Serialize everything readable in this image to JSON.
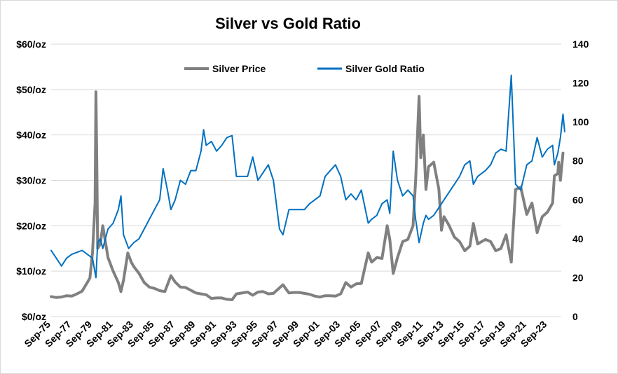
{
  "chart_data": {
    "type": "line",
    "title": "Silver vs Gold Ratio",
    "x_ticks": [
      "Sep-75",
      "Sep-77",
      "Sep-79",
      "Sep-81",
      "Sep-83",
      "Sep-85",
      "Sep-87",
      "Sep-89",
      "Sep-91",
      "Sep-93",
      "Sep-95",
      "Sep-97",
      "Sep-99",
      "Sep-01",
      "Sep-03",
      "Sep-05",
      "Sep-07",
      "Sep-09",
      "Sep-11",
      "Sep-13",
      "Sep-15",
      "Sep-17",
      "Sep-19",
      "Sep-21",
      "Sep-23"
    ],
    "x_range": [
      1975.67,
      2025.0
    ],
    "y_left": {
      "min": 0,
      "max": 60,
      "step": 10,
      "tick_labels": [
        "$0/oz",
        "$10/oz",
        "$20/oz",
        "$30/oz",
        "$40/oz",
        "$50/oz",
        "$60/oz"
      ]
    },
    "y_right": {
      "min": 0,
      "max": 140,
      "step": 20,
      "tick_labels": [
        "0",
        "20",
        "40",
        "60",
        "80",
        "100",
        "120",
        "140"
      ]
    },
    "grid": "horizontal",
    "legend": "top-center",
    "series": [
      {
        "name": "Silver Price",
        "axis": "left",
        "color": "#808080",
        "points": [
          [
            "Sep-75",
            4.4
          ],
          [
            "Mar-76",
            4.2
          ],
          [
            "Sep-76",
            4.3
          ],
          [
            "Mar-77",
            4.6
          ],
          [
            "Sep-77",
            4.5
          ],
          [
            "Mar-78",
            5.0
          ],
          [
            "Sep-78",
            5.6
          ],
          [
            "Mar-79",
            7.5
          ],
          [
            "Jun-79",
            8.5
          ],
          [
            "Sep-79",
            14.0
          ],
          [
            "Dec-79",
            25.0
          ],
          [
            "Jan-80",
            49.5
          ],
          [
            "Feb-80",
            35.0
          ],
          [
            "Mar-80",
            15.0
          ],
          [
            "Jun-80",
            16.0
          ],
          [
            "Sep-80",
            20.0
          ],
          [
            "Mar-81",
            13.0
          ],
          [
            "Sep-81",
            10.0
          ],
          [
            "Mar-82",
            7.5
          ],
          [
            "Jun-82",
            5.5
          ],
          [
            "Sep-82",
            8.0
          ],
          [
            "Feb-83",
            14.0
          ],
          [
            "Jun-83",
            12.0
          ],
          [
            "Sep-83",
            11.0
          ],
          [
            "Mar-84",
            9.5
          ],
          [
            "Sep-84",
            7.5
          ],
          [
            "Mar-85",
            6.5
          ],
          [
            "Sep-85",
            6.2
          ],
          [
            "Mar-86",
            5.7
          ],
          [
            "Sep-86",
            5.5
          ],
          [
            "Apr-87",
            9.0
          ],
          [
            "Sep-87",
            7.6
          ],
          [
            "Mar-88",
            6.5
          ],
          [
            "Sep-88",
            6.4
          ],
          [
            "Mar-89",
            5.8
          ],
          [
            "Sep-89",
            5.2
          ],
          [
            "Mar-90",
            5.0
          ],
          [
            "Sep-90",
            4.8
          ],
          [
            "Mar-91",
            4.0
          ],
          [
            "Sep-91",
            4.1
          ],
          [
            "Mar-92",
            4.1
          ],
          [
            "Sep-92",
            3.8
          ],
          [
            "Mar-93",
            3.7
          ],
          [
            "Aug-93",
            5.0
          ],
          [
            "Sep-94",
            5.4
          ],
          [
            "Mar-95",
            4.7
          ],
          [
            "Sep-95",
            5.4
          ],
          [
            "Mar-96",
            5.5
          ],
          [
            "Sep-96",
            5.0
          ],
          [
            "Mar-97",
            5.1
          ],
          [
            "Feb-98",
            7.0
          ],
          [
            "Sep-98",
            5.2
          ],
          [
            "Mar-99",
            5.3
          ],
          [
            "Sep-99",
            5.3
          ],
          [
            "Mar-00",
            5.1
          ],
          [
            "Sep-00",
            4.9
          ],
          [
            "Mar-01",
            4.5
          ],
          [
            "Sep-01",
            4.3
          ],
          [
            "Mar-02",
            4.6
          ],
          [
            "Sep-02",
            4.6
          ],
          [
            "Mar-03",
            4.5
          ],
          [
            "Sep-03",
            5.0
          ],
          [
            "Mar-04",
            7.5
          ],
          [
            "Sep-04",
            6.5
          ],
          [
            "Mar-05",
            7.2
          ],
          [
            "Sep-05",
            7.3
          ],
          [
            "May-06",
            14.0
          ],
          [
            "Sep-06",
            12.0
          ],
          [
            "Mar-07",
            13.0
          ],
          [
            "Sep-07",
            12.8
          ],
          [
            "Mar-08",
            20.0
          ],
          [
            "Jun-08",
            17.0
          ],
          [
            "Oct-08",
            9.5
          ],
          [
            "Mar-09",
            13.0
          ],
          [
            "Sep-09",
            16.5
          ],
          [
            "Mar-10",
            17.0
          ],
          [
            "Sep-10",
            20.0
          ],
          [
            "Dec-10",
            30.0
          ],
          [
            "Apr-11",
            48.5
          ],
          [
            "Jun-11",
            35.0
          ],
          [
            "Sep-11",
            40.0
          ],
          [
            "Dec-11",
            28.0
          ],
          [
            "Mar-12",
            33.0
          ],
          [
            "Sep-12",
            34.0
          ],
          [
            "Mar-13",
            28.0
          ],
          [
            "Jun-13",
            19.0
          ],
          [
            "Sep-13",
            22.0
          ],
          [
            "Mar-14",
            20.0
          ],
          [
            "Sep-14",
            17.5
          ],
          [
            "Mar-15",
            16.5
          ],
          [
            "Sep-15",
            14.5
          ],
          [
            "Mar-16",
            15.5
          ],
          [
            "Jul-16",
            20.5
          ],
          [
            "Dec-16",
            16.0
          ],
          [
            "Sep-17",
            17.0
          ],
          [
            "Mar-18",
            16.5
          ],
          [
            "Sep-18",
            14.5
          ],
          [
            "Mar-19",
            15.0
          ],
          [
            "Sep-19",
            18.0
          ],
          [
            "Mar-20",
            12.0
          ],
          [
            "Aug-20",
            28.0
          ],
          [
            "Feb-21",
            28.5
          ],
          [
            "Sep-21",
            22.5
          ],
          [
            "Mar-22",
            25.0
          ],
          [
            "Sep-22",
            18.5
          ],
          [
            "Mar-23",
            22.0
          ],
          [
            "Sep-23",
            23.0
          ],
          [
            "Mar-24",
            25.0
          ],
          [
            "May-24",
            31.0
          ],
          [
            "Sep-24",
            31.5
          ],
          [
            "Oct-24",
            34.0
          ],
          [
            "Dec-24",
            30.0
          ],
          [
            "Mar-25",
            36.0
          ]
        ]
      },
      {
        "name": "Silver Gold Ratio",
        "axis": "right",
        "color": "#0070c0",
        "points": [
          [
            "Sep-75",
            34
          ],
          [
            "Mar-76",
            30
          ],
          [
            "Sep-76",
            26
          ],
          [
            "Mar-77",
            30
          ],
          [
            "Sep-77",
            32
          ],
          [
            "Mar-78",
            33
          ],
          [
            "Sep-78",
            34
          ],
          [
            "Mar-79",
            32
          ],
          [
            "Sep-79",
            30
          ],
          [
            "Jan-80",
            20
          ],
          [
            "Mar-80",
            38
          ],
          [
            "Jun-80",
            40
          ],
          [
            "Sep-80",
            35
          ],
          [
            "Mar-81",
            45
          ],
          [
            "Sep-81",
            48
          ],
          [
            "Mar-82",
            55
          ],
          [
            "Jun-82",
            62
          ],
          [
            "Sep-82",
            42
          ],
          [
            "Mar-83",
            35
          ],
          [
            "Sep-83",
            38
          ],
          [
            "Mar-84",
            40
          ],
          [
            "Sep-84",
            45
          ],
          [
            "Mar-85",
            50
          ],
          [
            "Sep-85",
            55
          ],
          [
            "Mar-86",
            60
          ],
          [
            "Jul-86",
            76
          ],
          [
            "Dec-86",
            65
          ],
          [
            "Apr-87",
            55
          ],
          [
            "Sep-87",
            60
          ],
          [
            "Mar-88",
            70
          ],
          [
            "Sep-88",
            68
          ],
          [
            "Mar-89",
            75
          ],
          [
            "Sep-89",
            75
          ],
          [
            "Mar-90",
            85
          ],
          [
            "Jun-90",
            96
          ],
          [
            "Sep-90",
            88
          ],
          [
            "Mar-91",
            90
          ],
          [
            "Sep-91",
            85
          ],
          [
            "Mar-92",
            88
          ],
          [
            "Sep-92",
            92
          ],
          [
            "Mar-93",
            93
          ],
          [
            "Aug-93",
            72
          ],
          [
            "Sep-94",
            72
          ],
          [
            "Mar-95",
            82
          ],
          [
            "Sep-95",
            70
          ],
          [
            "Mar-96",
            74
          ],
          [
            "Sep-96",
            78
          ],
          [
            "Mar-97",
            70
          ],
          [
            "Oct-97",
            45
          ],
          [
            "Feb-98",
            42
          ],
          [
            "Sep-98",
            55
          ],
          [
            "Mar-99",
            55
          ],
          [
            "Sep-99",
            55
          ],
          [
            "Mar-00",
            55
          ],
          [
            "Sep-00",
            58
          ],
          [
            "Mar-01",
            60
          ],
          [
            "Sep-01",
            62
          ],
          [
            "Mar-02",
            72
          ],
          [
            "Sep-02",
            75
          ],
          [
            "Mar-03",
            78
          ],
          [
            "Sep-03",
            72
          ],
          [
            "Mar-04",
            60
          ],
          [
            "Sep-04",
            63
          ],
          [
            "Mar-05",
            60
          ],
          [
            "Sep-05",
            65
          ],
          [
            "May-06",
            48
          ],
          [
            "Sep-06",
            50
          ],
          [
            "Mar-07",
            52
          ],
          [
            "Sep-07",
            58
          ],
          [
            "Mar-08",
            60
          ],
          [
            "Jun-08",
            53
          ],
          [
            "Oct-08",
            85
          ],
          [
            "Mar-09",
            70
          ],
          [
            "Sep-09",
            62
          ],
          [
            "Mar-10",
            65
          ],
          [
            "Sep-10",
            62
          ],
          [
            "Dec-10",
            50
          ],
          [
            "Apr-11",
            38
          ],
          [
            "Sep-11",
            48
          ],
          [
            "Dec-11",
            52
          ],
          [
            "Mar-12",
            50
          ],
          [
            "Sep-12",
            52
          ],
          [
            "Mar-13",
            56
          ],
          [
            "Sep-13",
            60
          ],
          [
            "Mar-14",
            64
          ],
          [
            "Sep-14",
            68
          ],
          [
            "Mar-15",
            72
          ],
          [
            "Sep-15",
            78
          ],
          [
            "Mar-16",
            80
          ],
          [
            "Jul-16",
            68
          ],
          [
            "Dec-16",
            72
          ],
          [
            "Sep-17",
            75
          ],
          [
            "Mar-18",
            78
          ],
          [
            "Sep-18",
            84
          ],
          [
            "Mar-19",
            86
          ],
          [
            "Sep-19",
            85
          ],
          [
            "Mar-20",
            124
          ],
          [
            "Aug-20",
            68
          ],
          [
            "Feb-21",
            65
          ],
          [
            "Sep-21",
            78
          ],
          [
            "Mar-22",
            80
          ],
          [
            "Sep-22",
            92
          ],
          [
            "Mar-23",
            82
          ],
          [
            "Sep-23",
            86
          ],
          [
            "Mar-24",
            88
          ],
          [
            "May-24",
            78
          ],
          [
            "Sep-24",
            84
          ],
          [
            "Dec-24",
            92
          ],
          [
            "Mar-25",
            104
          ],
          [
            "May-25",
            95
          ]
        ]
      }
    ]
  }
}
